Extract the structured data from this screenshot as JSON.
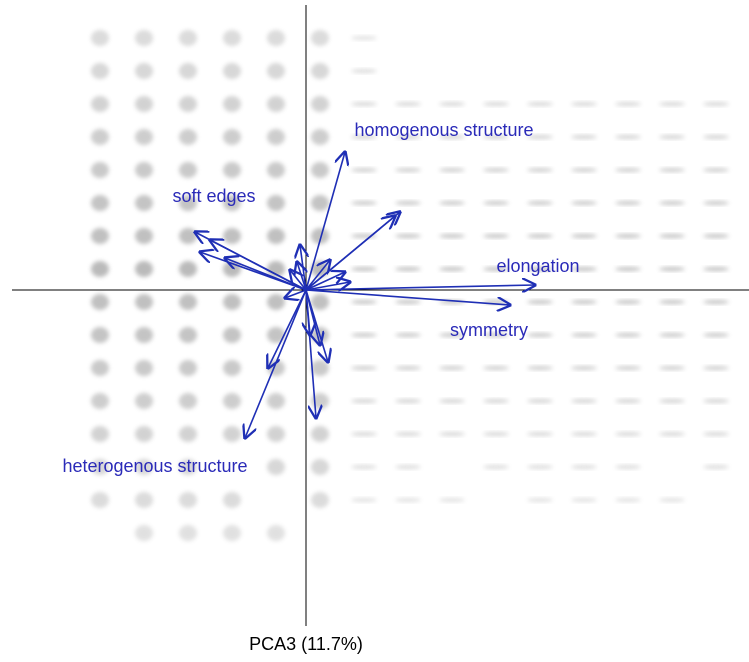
{
  "labels": {
    "homogenous": "homogenous structure",
    "soft": "soft edges",
    "elongation": "elongation",
    "symmetry": "symmetry",
    "heterogenous": "heterogenous structure"
  },
  "x_axis_label": "PCA3 (11.7%)"
}
